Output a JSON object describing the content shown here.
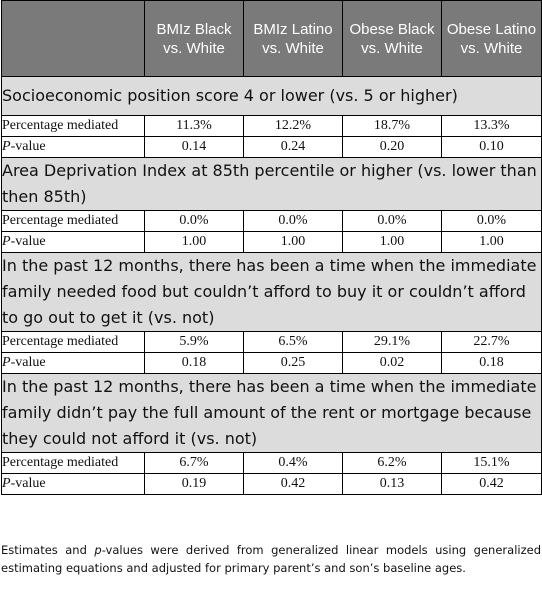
{
  "headers": [
    "",
    "BMIz Black vs. White",
    "BMIz Latino vs. White",
    "Obese Black vs. White",
    "Obese Latino vs. White"
  ],
  "sections": [
    {
      "title": "Socioeconomic position score 4 or lower (vs. 5 or higher)",
      "rows": [
        {
          "label_prefix": "",
          "label_italic": "",
          "label": "Percentage mediated",
          "values": [
            "11.3%",
            "12.2%",
            "18.7%",
            "13.3%"
          ]
        },
        {
          "label_prefix": "",
          "label_italic": "P",
          "label": "-value",
          "values": [
            "0.14",
            "0.24",
            "0.20",
            "0.10"
          ]
        }
      ]
    },
    {
      "title": "Area Deprivation Index at 85th percentile or higher (vs. lower than then 85th)",
      "rows": [
        {
          "label_italic": "",
          "label": "Percentage mediated",
          "values": [
            "0.0%",
            "0.0%",
            "0.0%",
            "0.0%"
          ]
        },
        {
          "label_italic": "P",
          "label": "-value",
          "values": [
            "1.00",
            "1.00",
            "1.00",
            "1.00"
          ]
        }
      ]
    },
    {
      "title": "In the past 12 months, there has been a time when the immediate family needed food but couldn’t afford to buy it or couldn’t afford to go out to get it (vs. not)",
      "rows": [
        {
          "label_italic": "",
          "label": "Percentage mediated",
          "values": [
            "5.9%",
            "6.5%",
            "29.1%",
            "22.7%"
          ]
        },
        {
          "label_italic": "P",
          "label": "-value",
          "values": [
            "0.18",
            "0.25",
            "0.02",
            "0.18"
          ]
        }
      ]
    },
    {
      "title": "In the past 12 months, there has been a time when the immediate family didn’t pay the full amount of the rent or mortgage because they could not afford it (vs. not)",
      "rows": [
        {
          "label_italic": "",
          "label": "Percentage mediated",
          "values": [
            "6.7%",
            "0.4%",
            "6.2%",
            "15.1%"
          ]
        },
        {
          "label_italic": "P",
          "label": "-value",
          "values": [
            "0.19",
            "0.42",
            "0.13",
            "0.42"
          ]
        }
      ]
    }
  ],
  "footnote": {
    "part1": "Estimates and ",
    "italic": "p",
    "part2": "-values were derived from generalized linear models using generalized estimating equations and adjusted for primary parent’s and son’s baseline ages."
  }
}
